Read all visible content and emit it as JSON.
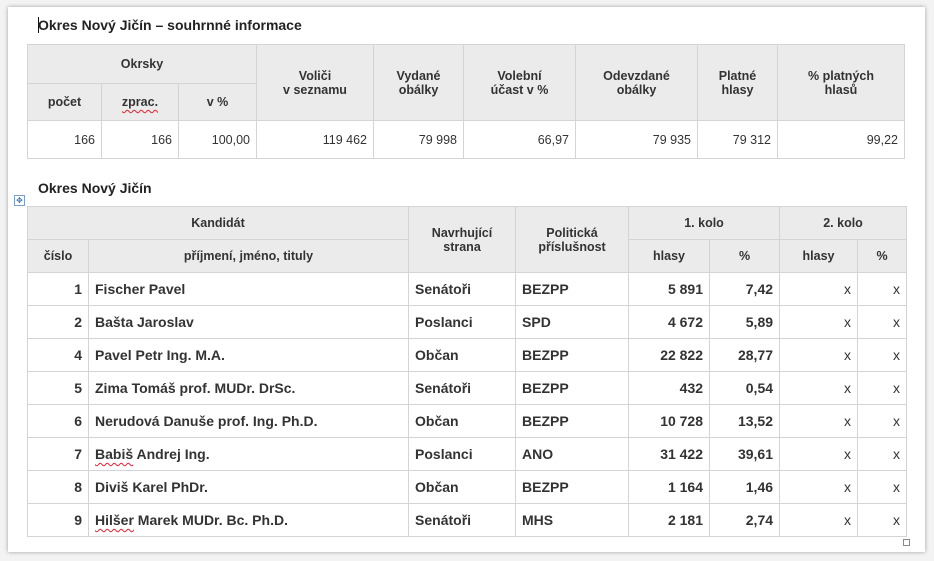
{
  "summary": {
    "title": "Okres Nový Jičín – souhrnné informace",
    "headers": {
      "okrsky": "Okrsky",
      "pocet": "počet",
      "zprac": "zprac.",
      "v_pct": "v %",
      "volici_l1": "Voliči",
      "volici_l2": "v seznamu",
      "vydane_l1": "Vydané",
      "vydane_l2": "obálky",
      "ucast_l1": "Volební",
      "ucast_l2": "účast v %",
      "odevzdane_l1": "Odevzdané",
      "odevzdane_l2": "obálky",
      "platne_l1": "Platné",
      "platne_l2": "hlasy",
      "pct_platnych_l1": "% platných",
      "pct_platnych_l2": "hlasů"
    },
    "values": {
      "pocet": "166",
      "zprac": "166",
      "v_pct": "100,00",
      "volici": "119 462",
      "vydane": "79 998",
      "ucast": "66,97",
      "odevzdane": "79 935",
      "platne": "79 312",
      "pct_platnych": "99,22"
    }
  },
  "results": {
    "title": "Okres Nový Jičín",
    "headers": {
      "kandidat": "Kandidát",
      "cislo": "číslo",
      "jmeno": "příjmení, jméno, tituly",
      "navrhujici_l1": "Navrhující",
      "navrhujici_l2": "strana",
      "politicka_l1": "Politická",
      "politicka_l2": "příslušnost",
      "kolo1": "1. kolo",
      "kolo2": "2. kolo",
      "hlasy": "hlasy",
      "pct": "%"
    },
    "rows": [
      {
        "cislo": "1",
        "jmeno": "Fischer Pavel",
        "strana": "Senátoři",
        "prislusnost": "BEZPP",
        "hlasy": "5 891",
        "pct": "7,42",
        "hlasy2": "x",
        "pct2": "x"
      },
      {
        "cislo": "2",
        "jmeno": "Bašta Jaroslav",
        "strana": "Poslanci",
        "prislusnost": "SPD",
        "hlasy": "4 672",
        "pct": "5,89",
        "hlasy2": "x",
        "pct2": "x"
      },
      {
        "cislo": "4",
        "jmeno": "Pavel Petr Ing. M.A.",
        "strana": "Občan",
        "prislusnost": "BEZPP",
        "hlasy": "22 822",
        "pct": "28,77",
        "hlasy2": "x",
        "pct2": "x"
      },
      {
        "cislo": "5",
        "jmeno": "Zima Tomáš prof. MUDr. DrSc.",
        "strana": "Senátoři",
        "prislusnost": "BEZPP",
        "hlasy": "432",
        "pct": "0,54",
        "hlasy2": "x",
        "pct2": "x"
      },
      {
        "cislo": "6",
        "jmeno": "Nerudová Danuše prof. Ing. Ph.D.",
        "strana": "Občan",
        "prislusnost": "BEZPP",
        "hlasy": "10 728",
        "pct": "13,52",
        "hlasy2": "x",
        "pct2": "x"
      },
      {
        "cislo": "7",
        "jmeno": "Babiš Andrej Ing.",
        "strana": "Poslanci",
        "prislusnost": "ANO",
        "hlasy": "31 422",
        "pct": "39,61",
        "hlasy2": "x",
        "pct2": "x"
      },
      {
        "cislo": "8",
        "jmeno": "Diviš Karel PhDr.",
        "strana": "Občan",
        "prislusnost": "BEZPP",
        "hlasy": "1 164",
        "pct": "1,46",
        "hlasy2": "x",
        "pct2": "x"
      },
      {
        "cislo": "9",
        "jmeno": "Hilšer Marek MUDr. Bc. Ph.D.",
        "strana": "Senátoři",
        "prislusnost": "MHS",
        "hlasy": "2 181",
        "pct": "2,74",
        "hlasy2": "x",
        "pct2": "x"
      }
    ]
  }
}
